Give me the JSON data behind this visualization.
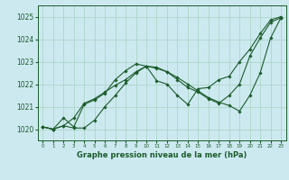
{
  "title": "Graphe pression niveau de la mer (hPa)",
  "bg_color": "#cde9f0",
  "grid_color": "#b0d8cc",
  "line_color": "#1a5c2a",
  "marker_color": "#1a5c2a",
  "xlim": [
    -0.5,
    23.5
  ],
  "ylim": [
    1019.5,
    1025.5
  ],
  "yticks": [
    1020,
    1021,
    1022,
    1023,
    1024,
    1025
  ],
  "xticks": [
    0,
    1,
    2,
    3,
    4,
    5,
    6,
    7,
    8,
    9,
    10,
    11,
    12,
    13,
    14,
    15,
    16,
    17,
    18,
    19,
    20,
    21,
    22,
    23
  ],
  "series": [
    [
      1020.1,
      1020.0,
      1020.5,
      1020.1,
      1021.1,
      1021.3,
      1021.6,
      1022.2,
      1022.6,
      1022.9,
      1022.8,
      1022.15,
      1022.0,
      1021.5,
      1021.1,
      1021.8,
      1021.85,
      1022.2,
      1022.35,
      1023.0,
      1023.55,
      1024.25,
      1024.85,
      1025.0
    ],
    [
      1020.1,
      1020.0,
      1020.15,
      1020.5,
      1021.15,
      1021.35,
      1021.65,
      1021.95,
      1022.2,
      1022.55,
      1022.8,
      1022.7,
      1022.55,
      1022.2,
      1021.85,
      1021.65,
      1021.35,
      1021.15,
      1021.5,
      1022.0,
      1023.25,
      1024.05,
      1024.75,
      1024.95
    ],
    [
      1020.1,
      1020.0,
      1020.15,
      1020.05,
      1020.05,
      1020.4,
      1021.0,
      1021.5,
      1022.05,
      1022.5,
      1022.8,
      1022.75,
      1022.55,
      1022.3,
      1022.0,
      1021.7,
      1021.4,
      1021.2,
      1021.05,
      1020.8,
      1021.5,
      1022.5,
      1024.05,
      1024.95
    ]
  ]
}
